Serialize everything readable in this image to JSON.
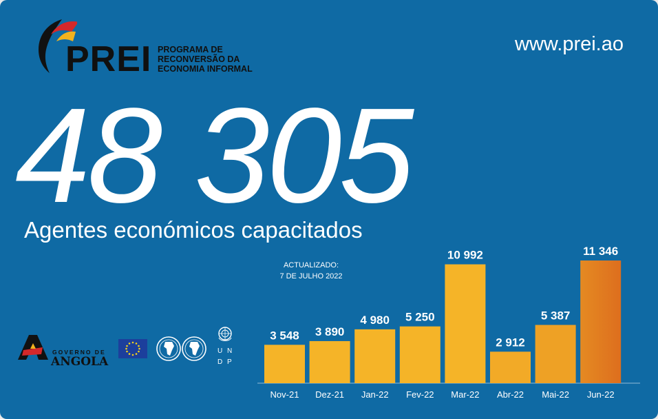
{
  "header": {
    "logo_word": "PREI",
    "logo_subtitle": [
      "PROGRAMA DE",
      "RECONVERSÃO DA",
      "ECONOMIA INFORMAL"
    ],
    "url": "www.prei.ao"
  },
  "headline": {
    "number": "48 305",
    "subtitle": "Agentes económicos capacitados"
  },
  "updated": {
    "line1": "ACTUALIZADO:",
    "line2": "7 DE JULHO 2022"
  },
  "sponsors": {
    "angola_line1": "GOVERNO DE",
    "angola_line2": "ANGOLA",
    "undp_letters": [
      "U",
      "N",
      "D",
      "P"
    ]
  },
  "colors": {
    "background": "#0f6aa4",
    "bar_yellow": "#f5b428",
    "bar_orange": "#dd6e1e",
    "text": "#ffffff"
  },
  "chart_data": {
    "type": "bar",
    "categories": [
      "Nov-21",
      "Dez-21",
      "Jan-22",
      "Fev-22",
      "Mar-22",
      "Abr-22",
      "Mai-22",
      "Jun-22"
    ],
    "values": [
      3548,
      3890,
      4980,
      5250,
      10992,
      2912,
      5387,
      11346
    ],
    "value_labels": [
      "3 548",
      "3 890",
      "4 980",
      "5 250",
      "10 992",
      "2 912",
      "5 387",
      "11 346"
    ],
    "title": "",
    "xlabel": "",
    "ylabel": "",
    "ylim": [
      0,
      11346
    ],
    "grid": false,
    "legend": "none"
  }
}
